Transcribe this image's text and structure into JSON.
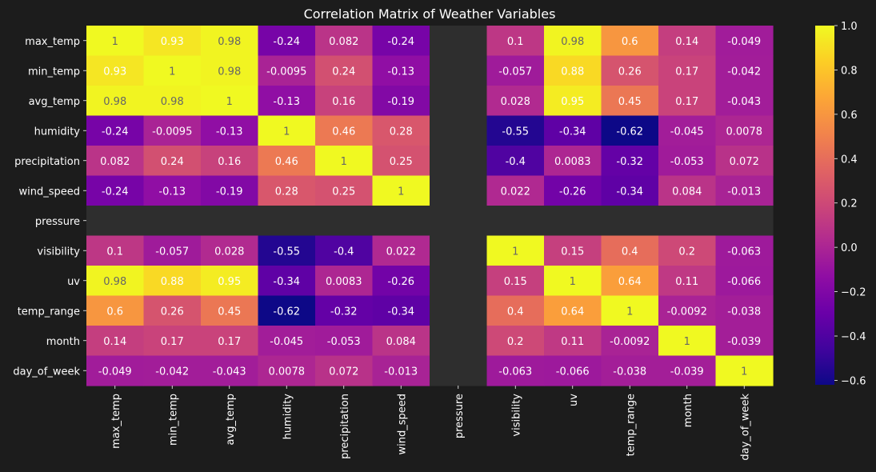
{
  "chart_data": {
    "type": "heatmap",
    "title": "Correlation Matrix of Weather Variables",
    "colormap": "plasma",
    "nan_color": "#2e2e2e",
    "background": "#1c1c1c",
    "vmin": -0.62,
    "vmax": 1,
    "variables": [
      "max_temp",
      "min_temp",
      "avg_temp",
      "humidity",
      "precipitation",
      "wind_speed",
      "pressure",
      "visibility",
      "uv",
      "temp_range",
      "month",
      "day_of_week"
    ],
    "matrix": [
      [
        1,
        0.93,
        0.98,
        -0.24,
        0.082,
        -0.24,
        null,
        0.1,
        0.98,
        0.6,
        0.14,
        -0.049
      ],
      [
        0.93,
        1,
        0.98,
        -0.0095,
        0.24,
        -0.13,
        null,
        -0.057,
        0.88,
        0.26,
        0.17,
        -0.042
      ],
      [
        0.98,
        0.98,
        1,
        -0.13,
        0.16,
        -0.19,
        null,
        0.028,
        0.95,
        0.45,
        0.17,
        -0.043
      ],
      [
        -0.24,
        -0.0095,
        -0.13,
        1,
        0.46,
        0.28,
        null,
        -0.55,
        -0.34,
        -0.62,
        -0.045,
        0.0078
      ],
      [
        0.082,
        0.24,
        0.16,
        0.46,
        1,
        0.25,
        null,
        -0.4,
        0.0083,
        -0.32,
        -0.053,
        0.072
      ],
      [
        -0.24,
        -0.13,
        -0.19,
        0.28,
        0.25,
        1,
        null,
        0.022,
        -0.26,
        -0.34,
        0.084,
        -0.013
      ],
      [
        null,
        null,
        null,
        null,
        null,
        null,
        null,
        null,
        null,
        null,
        null,
        null
      ],
      [
        0.1,
        -0.057,
        0.028,
        -0.55,
        -0.4,
        0.022,
        null,
        1,
        0.15,
        0.4,
        0.2,
        -0.063
      ],
      [
        0.98,
        0.88,
        0.95,
        -0.34,
        0.0083,
        -0.26,
        null,
        0.15,
        1,
        0.64,
        0.11,
        -0.066
      ],
      [
        0.6,
        0.26,
        0.45,
        -0.62,
        -0.32,
        -0.34,
        null,
        0.4,
        0.64,
        1,
        -0.0092,
        -0.038
      ],
      [
        0.14,
        0.17,
        0.17,
        -0.045,
        -0.053,
        0.084,
        null,
        0.2,
        0.11,
        -0.0092,
        1,
        -0.039
      ],
      [
        -0.049,
        -0.042,
        -0.043,
        0.0078,
        0.072,
        -0.013,
        null,
        -0.063,
        -0.066,
        -0.038,
        -0.039,
        1
      ]
    ],
    "labels": [
      [
        "1",
        "0.93",
        "0.98",
        "-0.24",
        "0.082",
        "-0.24",
        "",
        "0.1",
        "0.98",
        "0.6",
        "0.14",
        "-0.049"
      ],
      [
        "0.93",
        "1",
        "0.98",
        "-0.0095",
        "0.24",
        "-0.13",
        "",
        "-0.057",
        "0.88",
        "0.26",
        "0.17",
        "-0.042"
      ],
      [
        "0.98",
        "0.98",
        "1",
        "-0.13",
        "0.16",
        "-0.19",
        "",
        "0.028",
        "0.95",
        "0.45",
        "0.17",
        "-0.043"
      ],
      [
        "-0.24",
        "-0.0095",
        "-0.13",
        "1",
        "0.46",
        "0.28",
        "",
        "-0.55",
        "-0.34",
        "-0.62",
        "-0.045",
        "0.0078"
      ],
      [
        "0.082",
        "0.24",
        "0.16",
        "0.46",
        "1",
        "0.25",
        "",
        "-0.4",
        "0.0083",
        "-0.32",
        "-0.053",
        "0.072"
      ],
      [
        "-0.24",
        "-0.13",
        "-0.19",
        "0.28",
        "0.25",
        "1",
        "",
        "0.022",
        "-0.26",
        "-0.34",
        "0.084",
        "-0.013"
      ],
      [
        "",
        "",
        "",
        "",
        "",
        "",
        "",
        "",
        "",
        "",
        "",
        ""
      ],
      [
        "0.1",
        "-0.057",
        "0.028",
        "-0.55",
        "-0.4",
        "0.022",
        "",
        "1",
        "0.15",
        "0.4",
        "0.2",
        "-0.063"
      ],
      [
        "0.98",
        "0.88",
        "0.95",
        "-0.34",
        "0.0083",
        "-0.26",
        "",
        "0.15",
        "1",
        "0.64",
        "0.11",
        "-0.066"
      ],
      [
        "0.6",
        "0.26",
        "0.45",
        "-0.62",
        "-0.32",
        "-0.34",
        "",
        "0.4",
        "0.64",
        "1",
        "-0.0092",
        "-0.038"
      ],
      [
        "0.14",
        "0.17",
        "0.17",
        "-0.045",
        "-0.053",
        "0.084",
        "",
        "0.2",
        "0.11",
        "-0.0092",
        "1",
        "-0.039"
      ],
      [
        "-0.049",
        "-0.042",
        "-0.043",
        "0.0078",
        "0.072",
        "-0.013",
        "",
        "-0.063",
        "-0.066",
        "-0.038",
        "-0.039",
        "1"
      ]
    ],
    "colorbar": {
      "ticks": [
        1.0,
        0.8,
        0.6,
        0.4,
        0.2,
        0.0,
        -0.2,
        -0.4,
        -0.6
      ],
      "tick_labels": [
        "1.0",
        "0.8",
        "0.6",
        "0.4",
        "0.2",
        "0.0",
        "−0.2",
        "−0.4",
        "−0.6"
      ]
    }
  }
}
